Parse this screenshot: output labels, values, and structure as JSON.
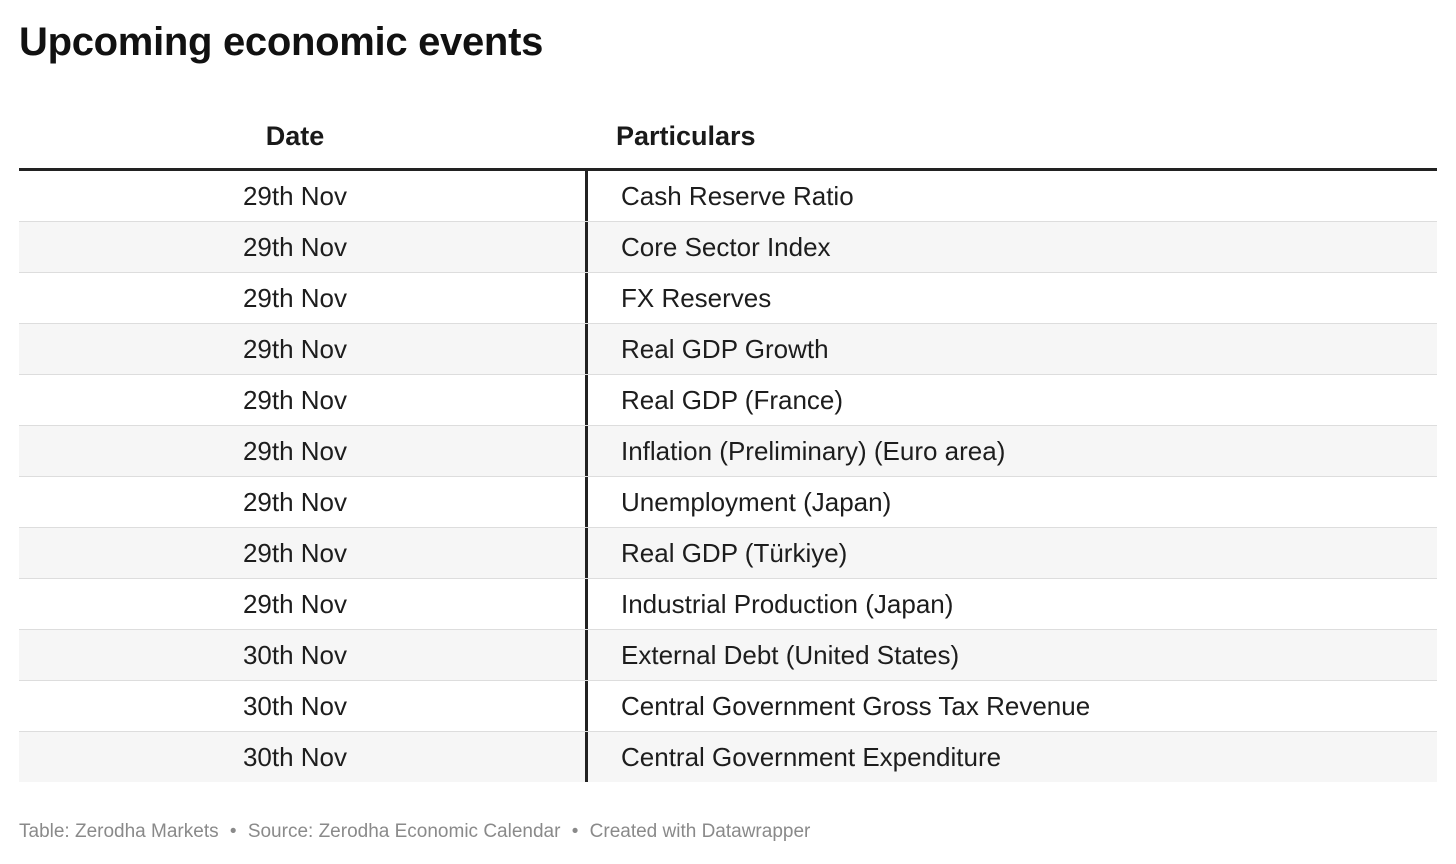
{
  "title": "Upcoming economic events",
  "chart_data": {
    "type": "table",
    "title": "Upcoming economic events",
    "columns": [
      "Date",
      "Particulars"
    ],
    "rows": [
      {
        "date": "29th Nov",
        "particulars": "Cash Reserve Ratio"
      },
      {
        "date": "29th Nov",
        "particulars": "Core Sector Index"
      },
      {
        "date": "29th Nov",
        "particulars": "FX Reserves"
      },
      {
        "date": "29th Nov",
        "particulars": "Real GDP Growth"
      },
      {
        "date": "29th Nov",
        "particulars": "Real GDP (France)"
      },
      {
        "date": "29th Nov",
        "particulars": "Inflation (Preliminary) (Euro area)"
      },
      {
        "date": "29th Nov",
        "particulars": "Unemployment (Japan)"
      },
      {
        "date": "29th Nov",
        "particulars": "Real GDP (Türkiye)"
      },
      {
        "date": "29th Nov",
        "particulars": "Industrial Production (Japan)"
      },
      {
        "date": "30th Nov",
        "particulars": "External Debt (United States)"
      },
      {
        "date": "30th Nov",
        "particulars": "Central Government Gross Tax Revenue"
      },
      {
        "date": "30th Nov",
        "particulars": "Central Government Expenditure"
      }
    ]
  },
  "footer": {
    "table_credit": "Table: Zerodha Markets",
    "source": "Source: Zerodha Economic Calendar",
    "created_with": "Created with Datawrapper",
    "separator": "•"
  },
  "colors": {
    "text": "#1d1d1d",
    "header_rule": "#222222",
    "row_stripe": "#f6f6f6",
    "footer_text": "#8a8a8a"
  }
}
